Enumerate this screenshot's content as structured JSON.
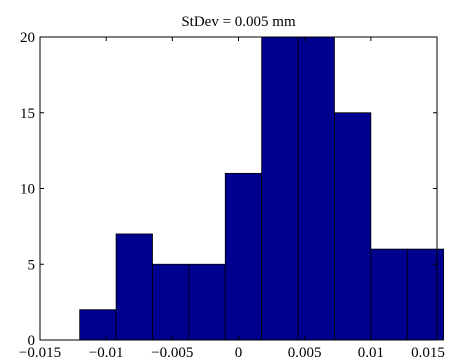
{
  "chart_data": {
    "type": "bar",
    "title": "StDev = 0.005 mm",
    "xlabel": "",
    "ylabel": "",
    "bin_width": 0.00275,
    "bins": [
      {
        "center": -0.010625,
        "count": 2
      },
      {
        "center": -0.007875,
        "count": 7
      },
      {
        "center": -0.005125,
        "count": 5
      },
      {
        "center": -0.002375,
        "count": 5
      },
      {
        "center": 0.000375,
        "count": 11
      },
      {
        "center": 0.003125,
        "count": 20
      },
      {
        "center": 0.005875,
        "count": 20
      },
      {
        "center": 0.008625,
        "count": 15
      },
      {
        "center": 0.011375,
        "count": 6
      },
      {
        "center": 0.014125,
        "count": 6
      }
    ],
    "xlim": [
      -0.015,
      0.015
    ],
    "ylim": [
      0,
      20
    ],
    "xticks": [
      -0.015,
      -0.01,
      -0.005,
      0,
      0.005,
      0.01,
      0.015
    ],
    "xtick_labels": [
      "−0.015",
      "−0.01",
      "−0.005",
      "0",
      "0.005",
      "0.01",
      "0.015"
    ],
    "yticks": [
      0,
      5,
      10,
      15,
      20
    ],
    "ytick_labels": [
      "0",
      "5",
      "10",
      "15",
      "20"
    ],
    "bar_color": "#00008f",
    "grid": false
  }
}
